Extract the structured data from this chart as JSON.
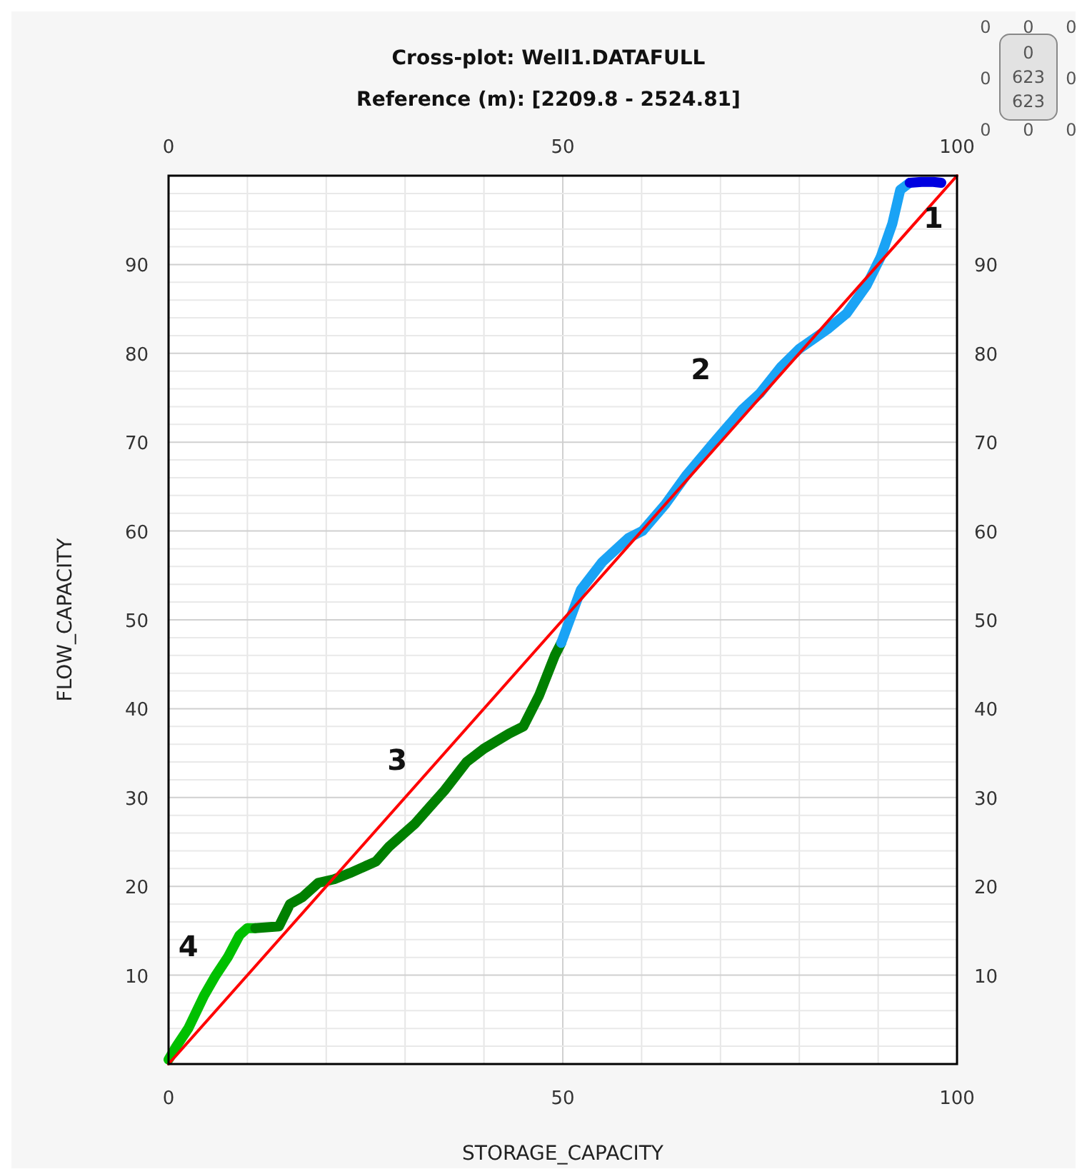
{
  "chart_data": {
    "type": "line",
    "title": "Cross-plot: Well1.DATAFULL",
    "subtitle": "Reference (m): [2209.8 - 2524.81]",
    "xlabel": "STORAGE_CAPACITY",
    "ylabel": "FLOW_CAPACITY",
    "xlim": [
      0,
      100
    ],
    "xticks": [
      0,
      {
        "value": 10,
        "label": null
      },
      {
        "value": 20,
        "label": null
      },
      {
        "value": 30,
        "label": null
      },
      {
        "value": 40,
        "label": null
      },
      50,
      {
        "value": 60,
        "label": null
      },
      {
        "value": 70,
        "label": null
      },
      {
        "value": 80,
        "label": null
      },
      {
        "value": 90,
        "label": null
      },
      100
    ],
    "x2lim": [
      0,
      100
    ],
    "x2ticks": [
      0,
      50,
      100
    ],
    "ylim": [
      0,
      100
    ],
    "yticks": [
      {
        "value": 2,
        "label": null
      },
      {
        "value": 4,
        "label": null
      },
      {
        "value": 6,
        "label": null
      },
      {
        "value": 8,
        "label": null
      },
      10,
      {
        "value": 12,
        "label": null
      },
      {
        "value": 14,
        "label": null
      },
      {
        "value": 16,
        "label": null
      },
      {
        "value": 18,
        "label": null
      },
      20,
      {
        "value": 22,
        "label": null
      },
      {
        "value": 24,
        "label": null
      },
      {
        "value": 26,
        "label": null
      },
      {
        "value": 28,
        "label": null
      },
      30,
      {
        "value": 32,
        "label": null
      },
      {
        "value": 34,
        "label": null
      },
      {
        "value": 36,
        "label": null
      },
      {
        "value": 38,
        "label": null
      },
      40,
      {
        "value": 42,
        "label": null
      },
      {
        "value": 44,
        "label": null
      },
      {
        "value": 46,
        "label": null
      },
      {
        "value": 48,
        "label": null
      },
      50,
      {
        "value": 52,
        "label": null
      },
      {
        "value": 54,
        "label": null
      },
      {
        "value": 56,
        "label": null
      },
      {
        "value": 58,
        "label": null
      },
      60,
      {
        "value": 62,
        "label": null
      },
      {
        "value": 64,
        "label": null
      },
      {
        "value": 66,
        "label": null
      },
      {
        "value": 68,
        "label": null
      },
      70,
      {
        "value": 72,
        "label": null
      },
      {
        "value": 74,
        "label": null
      },
      {
        "value": 76,
        "label": null
      },
      {
        "value": 78,
        "label": null
      },
      80,
      {
        "value": 82,
        "label": null
      },
      {
        "value": 84,
        "label": null
      },
      {
        "value": 86,
        "label": null
      },
      {
        "value": 88,
        "label": null
      },
      90,
      {
        "value": 92,
        "label": null
      },
      {
        "value": 94,
        "label": null
      },
      {
        "value": 96,
        "label": null
      },
      {
        "value": 98,
        "label": null
      }
    ],
    "y2lim": [
      0,
      100
    ],
    "y2ticks": [
      10,
      20,
      30,
      40,
      50,
      60,
      70,
      80,
      90
    ],
    "grid": true,
    "marker": "none",
    "line_style": "solid",
    "series": [
      {
        "color": "#00c000",
        "x": [
          0,
          1,
          2.5,
          4.5,
          6,
          7.5,
          9,
          10,
          11
        ],
        "values": [
          0.5,
          2,
          4,
          7.7,
          10,
          12,
          14.5,
          15.3,
          15.3
        ]
      },
      {
        "color": "#008000",
        "x": [
          11,
          14,
          15.4,
          17,
          19,
          21,
          23,
          26.3,
          28,
          31.2,
          33,
          35,
          37.8,
          40,
          43.2,
          45,
          47,
          49,
          49.8
        ],
        "values": [
          15.3,
          15.5,
          18,
          18.8,
          20.4,
          20.8,
          21.5,
          22.8,
          24.5,
          27,
          28.8,
          30.8,
          34,
          35.5,
          37.2,
          38,
          41.5,
          46,
          47.4
        ]
      },
      {
        "color": "#1aa3f5",
        "x": [
          49.8,
          52.3,
          55,
          58.3,
          60.1,
          63,
          65.6,
          69,
          72.8,
          75,
          77.7,
          80,
          83.7,
          86,
          88.5,
          90.3,
          91.8,
          92.8,
          94
        ],
        "values": [
          47.4,
          53.4,
          56.5,
          59.2,
          60,
          63,
          66.2,
          69.8,
          73.7,
          75.5,
          78.5,
          80.5,
          82.8,
          84.5,
          87.6,
          90.8,
          94.6,
          98.4,
          99.2
        ]
      },
      {
        "color": "#0000e0",
        "x": [
          94,
          95.5,
          97,
          98
        ],
        "values": [
          99.2,
          99.3,
          99.3,
          99.2
        ]
      },
      {
        "color": "#ff0000",
        "x": [
          0,
          100
        ],
        "values": [
          0,
          100
        ]
      }
    ],
    "annotations": [
      "1",
      "2",
      "3",
      "4",
      "0",
      "0",
      "0",
      "0",
      "0",
      "0",
      "0",
      "0",
      "0",
      "623",
      "623"
    ]
  }
}
